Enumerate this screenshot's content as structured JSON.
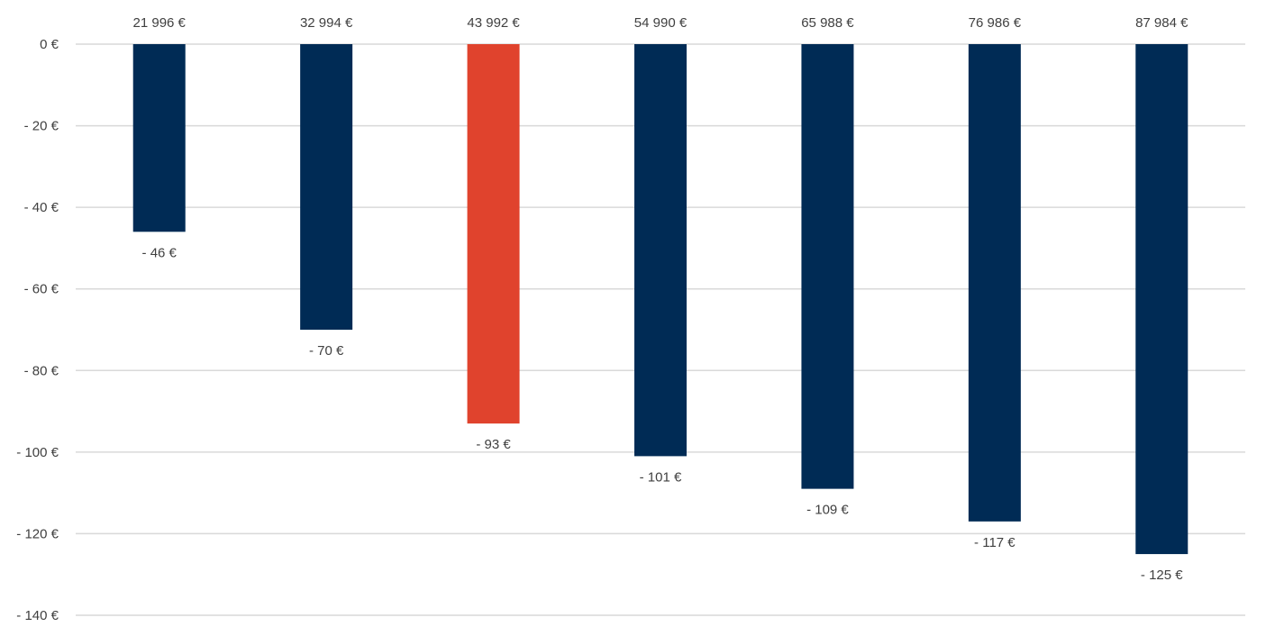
{
  "chart_data": {
    "type": "bar",
    "categories": [
      "21 996 €",
      "32 994 €",
      "43 992 €",
      "54 990 €",
      "65 988 €",
      "76 986 €",
      "87 984 €"
    ],
    "values": [
      -46,
      -70,
      -93,
      -101,
      -109,
      -117,
      -125
    ],
    "data_labels": [
      "- 46 €",
      "- 70 €",
      "- 93 €",
      "- 101 €",
      "- 109 €",
      "- 117 €",
      "- 125 €"
    ],
    "bar_colors": [
      "#002b55",
      "#002b55",
      "#e0432d",
      "#002b55",
      "#002b55",
      "#002b55",
      "#002b55"
    ],
    "ylim": [
      -140,
      0
    ],
    "yticks": [
      0,
      -20,
      -40,
      -60,
      -80,
      -100,
      -120,
      -140
    ],
    "ytick_labels": [
      "0 €",
      "- 20 €",
      "- 40 €",
      "- 60 €",
      "- 80 €",
      "- 100 €",
      "- 120 €",
      "- 140 €"
    ],
    "category_axis_position": "top",
    "grid": true,
    "grid_color": "#d9d9d9",
    "legend": "none"
  }
}
